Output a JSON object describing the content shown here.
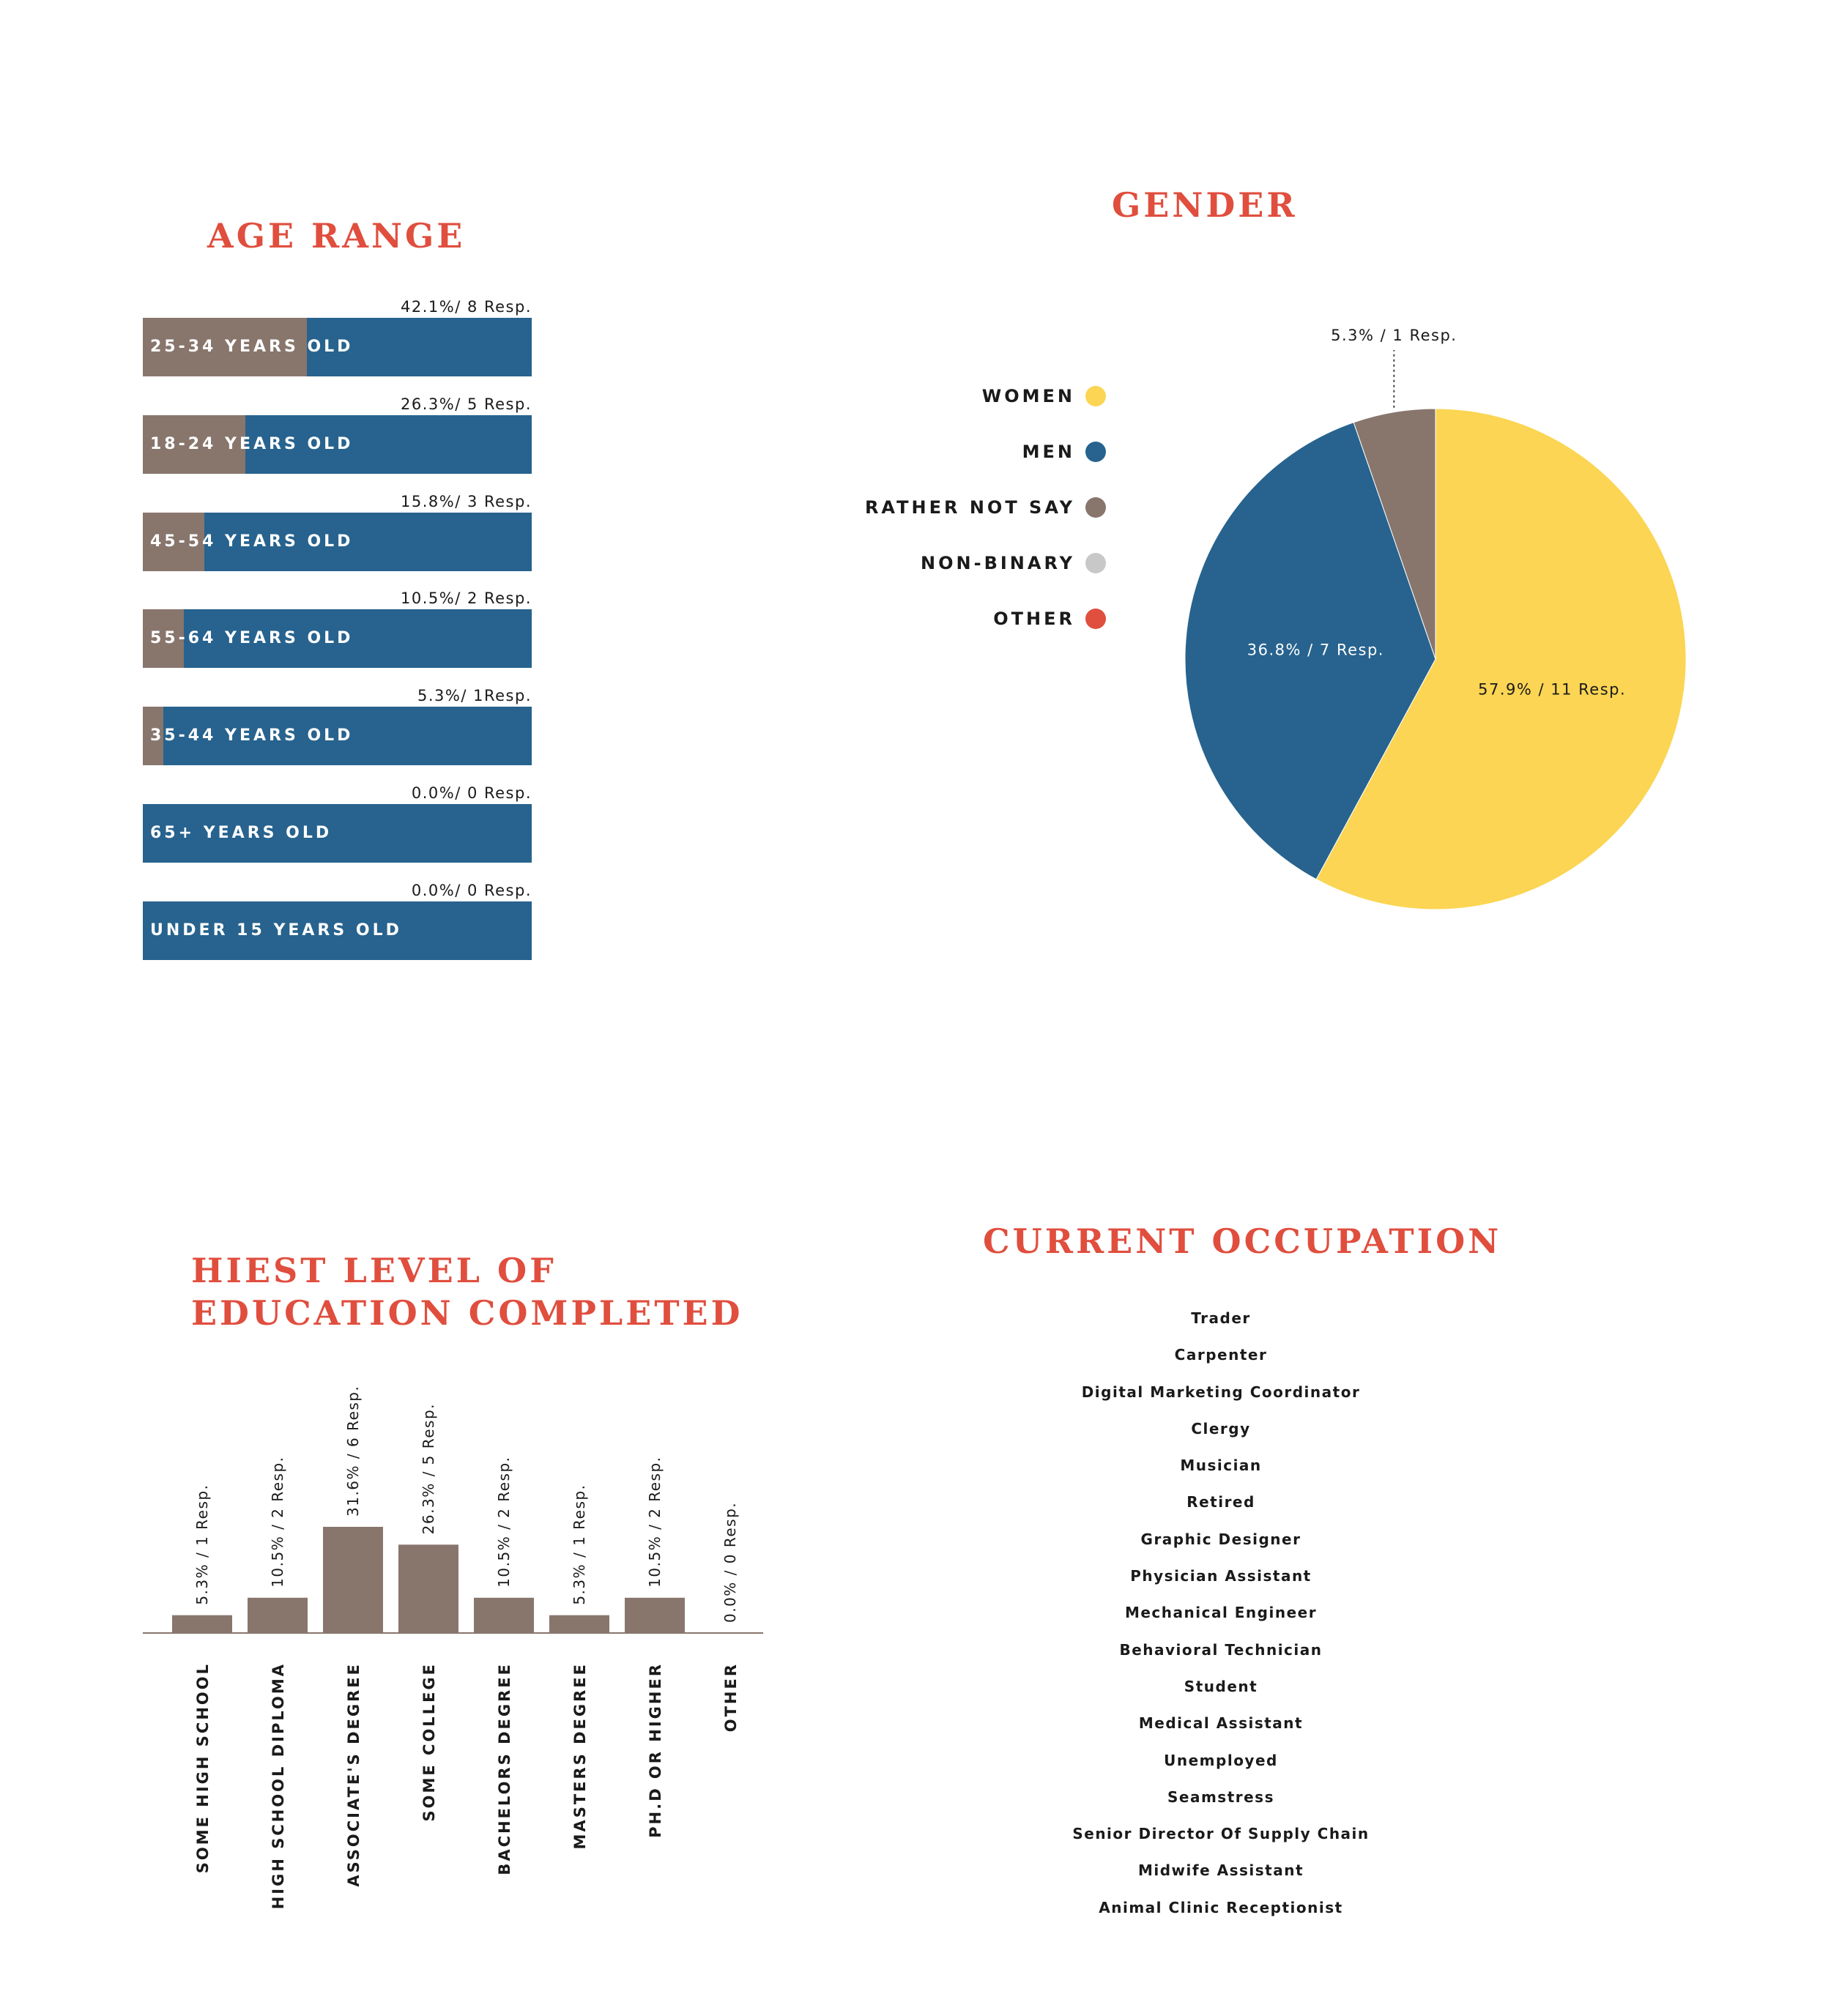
{
  "colors": {
    "title": "#e04e3e",
    "bar_blue": "#27638e",
    "bar_brown": "#88766d",
    "yellow": "#fbd553",
    "grey": "#c8c8c8",
    "red": "#e04e3e"
  },
  "chart_data": [
    {
      "type": "bar",
      "orientation": "horizontal",
      "title": "AGE RANGE",
      "categories": [
        "25-34 YEARS OLD",
        "18-24 YEARS OLD",
        "45-54 YEARS OLD",
        "55-64 YEARS OLD",
        "35-44 YEARS OLD",
        "65+ YEARS OLD",
        "UNDER 15 YEARS OLD"
      ],
      "values": [
        42.1,
        26.3,
        15.8,
        10.5,
        5.3,
        0.0,
        0.0
      ],
      "value_labels": [
        "42.1%/ 8 Resp.",
        "26.3%/ 5 Resp.",
        "15.8%/ 3 Resp.",
        "10.5%/ 2 Resp.",
        "5.3%/ 1Resp.",
        "0.0%/ 0 Resp.",
        "0.0%/ 0 Resp."
      ],
      "xlim": [
        0,
        100
      ]
    },
    {
      "type": "pie",
      "title": "GENDER",
      "legend": [
        "WOMEN",
        "MEN",
        "RATHER NOT SAY",
        "NON-BINARY",
        "OTHER"
      ],
      "legend_placement": "left",
      "slices": [
        {
          "name": "WOMEN",
          "value": 57.9,
          "label": "57.9% / 11 Resp.",
          "color": "#fbd553"
        },
        {
          "name": "MEN",
          "value": 36.8,
          "label": "36.8% / 7 Resp.",
          "color": "#27638e"
        },
        {
          "name": "RATHER NOT SAY",
          "value": 5.3,
          "label": "5.3% / 1 Resp.",
          "color": "#88766d"
        },
        {
          "name": "NON-BINARY",
          "value": 0,
          "label": "",
          "color": "#c8c8c8"
        },
        {
          "name": "OTHER",
          "value": 0,
          "label": "",
          "color": "#e04e3e"
        }
      ]
    },
    {
      "type": "bar",
      "orientation": "vertical",
      "title": "HIEST LEVEL OF EDUCATION COMPLETED",
      "title_lines": [
        "HIEST LEVEL OF",
        "EDUCATION COMPLETED"
      ],
      "categories": [
        "SOME HIGH SCHOOL",
        "HIGH SCHOOL DIPLOMA",
        "ASSOCIATE'S DEGREE",
        "SOME COLLEGE",
        "BACHELORS DEGREE",
        "MASTERS DEGREE",
        "PH.D OR HIGHER",
        "OTHER"
      ],
      "values": [
        5.3,
        10.5,
        31.6,
        26.3,
        10.5,
        5.3,
        10.5,
        0.0
      ],
      "value_labels": [
        "5.3% / 1 Resp.",
        "10.5% / 2 Resp.",
        "31.6% / 6 Resp.",
        "26.3% / 5 Resp.",
        "10.5% / 2 Resp.",
        "5.3% / 1 Resp.",
        "10.5% / 2 Resp.",
        "0.0% / 0 Resp."
      ],
      "ylim": [
        0,
        100
      ]
    }
  ],
  "occupation": {
    "title": "CURRENT OCCUPATION",
    "items": [
      "Trader",
      "Carpenter",
      "Digital Marketing Coordinator",
      "Clergy",
      "Musician",
      "Retired",
      "Graphic Designer",
      "Physician Assistant",
      "Mechanical Engineer",
      "Behavioral Technician",
      "Student",
      "Medical Assistant",
      "Unemployed",
      "Seamstress",
      "Senior Director Of Supply Chain",
      "Midwife Assistant",
      "Animal Clinic Receptionist"
    ]
  }
}
